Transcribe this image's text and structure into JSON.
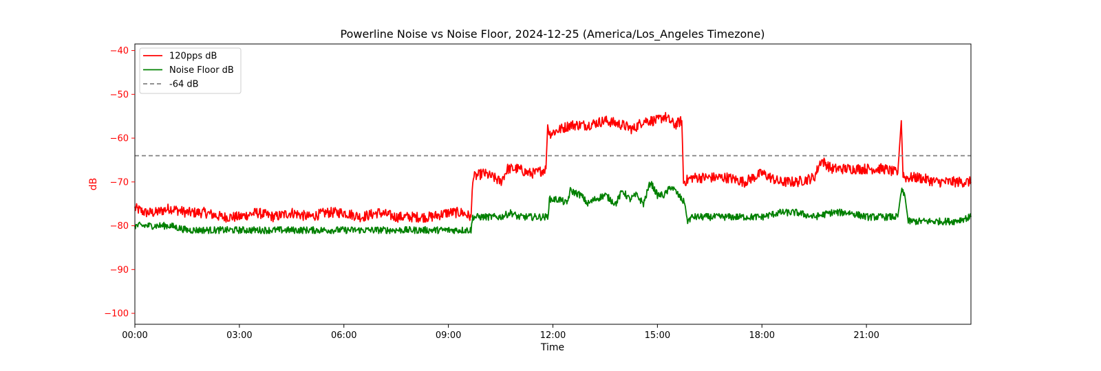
{
  "chart_data": {
    "type": "line",
    "title": "Powerline Noise vs Noise Floor, 2024-12-25 (America/Los_Angeles Timezone)",
    "xlabel": "Time",
    "ylabel": "dB",
    "x_unit": "hours",
    "xlim": [
      0,
      24
    ],
    "ylim": [
      -102.5,
      -38.5
    ],
    "x_ticks": [
      {
        "value": 0,
        "label": "00:00"
      },
      {
        "value": 3,
        "label": "03:00"
      },
      {
        "value": 6,
        "label": "06:00"
      },
      {
        "value": 9,
        "label": "09:00"
      },
      {
        "value": 12,
        "label": "12:00"
      },
      {
        "value": 15,
        "label": "15:00"
      },
      {
        "value": 18,
        "label": "18:00"
      },
      {
        "value": 21,
        "label": "21:00"
      }
    ],
    "y_ticks": [
      {
        "value": -40,
        "label": "−40"
      },
      {
        "value": -50,
        "label": "−50"
      },
      {
        "value": -60,
        "label": "−60"
      },
      {
        "value": -70,
        "label": "−70"
      },
      {
        "value": -80,
        "label": "−80"
      },
      {
        "value": -90,
        "label": "−90"
      },
      {
        "value": -100,
        "label": "−100"
      }
    ],
    "grid": false,
    "legend_position": "top-left",
    "series": [
      {
        "name": "120pps dB",
        "color": "#ff0000",
        "style": "solid",
        "x": [
          0,
          0.3,
          0.6,
          1.0,
          1.5,
          2.0,
          2.5,
          3.0,
          3.5,
          4.0,
          4.5,
          5.0,
          5.5,
          6.0,
          6.5,
          7.0,
          7.5,
          8.0,
          8.5,
          9.0,
          9.4,
          9.65,
          9.7,
          10.0,
          10.3,
          10.5,
          10.7,
          11.0,
          11.3,
          11.5,
          11.8,
          11.85,
          11.9,
          12.2,
          12.5,
          13.0,
          13.5,
          14.0,
          14.3,
          14.6,
          15.0,
          15.2,
          15.5,
          15.7,
          15.75,
          16.0,
          16.5,
          17.0,
          17.5,
          18.0,
          18.5,
          19.0,
          19.5,
          19.7,
          20.0,
          20.5,
          21.0,
          21.5,
          21.9,
          22.0,
          22.05,
          22.1,
          22.5,
          23.0,
          23.5,
          24.0
        ],
        "y": [
          -76,
          -77,
          -77,
          -76,
          -77,
          -77,
          -78,
          -78,
          -77,
          -78,
          -77,
          -78,
          -77,
          -77,
          -78,
          -77,
          -78,
          -78,
          -78,
          -77,
          -77,
          -78,
          -69,
          -68,
          -69,
          -70,
          -67,
          -67,
          -68,
          -68,
          -67,
          -57,
          -59,
          -58,
          -57,
          -57,
          -56,
          -57,
          -58,
          -56,
          -56,
          -55,
          -57,
          -56,
          -70,
          -69,
          -69,
          -69,
          -70,
          -68,
          -70,
          -70,
          -69,
          -65,
          -67,
          -67,
          -67,
          -67,
          -68,
          -56,
          -68,
          -69,
          -69,
          -70,
          -70,
          -70
        ]
      },
      {
        "name": "Noise Floor dB",
        "color": "#008000",
        "style": "solid",
        "x": [
          0,
          0.3,
          0.6,
          1.0,
          1.5,
          2.0,
          3.0,
          4.0,
          4.2,
          4.5,
          5.0,
          6.0,
          7.0,
          7.3,
          7.5,
          8.0,
          9.0,
          9.65,
          9.7,
          10.0,
          10.5,
          10.8,
          11.0,
          11.5,
          11.85,
          11.9,
          12.2,
          12.4,
          12.5,
          12.8,
          13.0,
          13.2,
          13.5,
          13.8,
          14.0,
          14.2,
          14.4,
          14.6,
          14.8,
          15.0,
          15.2,
          15.4,
          15.6,
          15.8,
          15.85,
          16.0,
          16.5,
          17.0,
          17.5,
          18.0,
          18.5,
          19.0,
          19.5,
          20.0,
          20.5,
          21.0,
          21.5,
          21.9,
          22.0,
          22.1,
          22.2,
          22.5,
          23.0,
          23.5,
          24.0
        ],
        "y": [
          -80,
          -80,
          -80,
          -80,
          -81,
          -81,
          -81,
          -81,
          -81,
          -81,
          -81,
          -81,
          -81,
          -81,
          -81,
          -81,
          -81,
          -81,
          -78,
          -78,
          -78,
          -77,
          -78,
          -78,
          -78,
          -74,
          -74,
          -75,
          -72,
          -73,
          -75,
          -74,
          -73,
          -75,
          -72,
          -74,
          -73,
          -75,
          -70,
          -73,
          -73,
          -71,
          -73,
          -75,
          -79,
          -78,
          -78,
          -78,
          -78,
          -78,
          -77,
          -77,
          -78,
          -77,
          -77,
          -78,
          -78,
          -78,
          -72,
          -73,
          -79,
          -79,
          -79,
          -79,
          -78
        ]
      },
      {
        "name": "-64 dB",
        "color": "#808080",
        "style": "dashed",
        "x": [
          0,
          24
        ],
        "y": [
          -64,
          -64
        ]
      }
    ]
  }
}
